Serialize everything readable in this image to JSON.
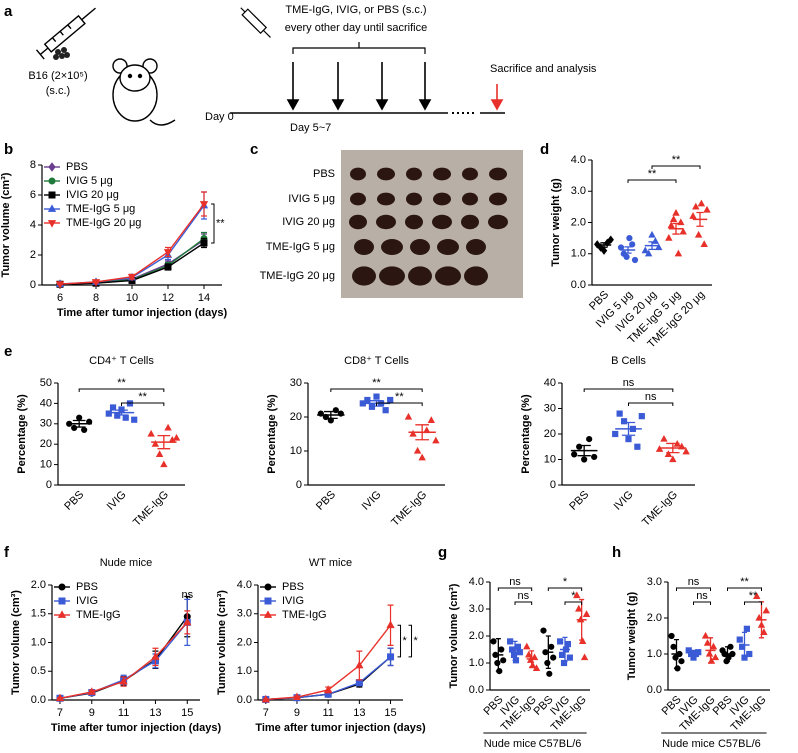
{
  "schematic": {
    "panel": "a",
    "tumor": "B16 (2×10⁵)",
    "route": "(s.c.)",
    "treatment": "TME-IgG, IVIG, or PBS (s.c.)",
    "schedule": "every other day until sacrifice",
    "end": "Sacrifice and analysis",
    "day0": "Day 0",
    "day_start": "Day 5~7"
  },
  "photo": {
    "panel": "c",
    "rows": [
      "PBS",
      "IVIG 5 μg",
      "IVIG 20 μg",
      "TME-IgG 5 μg",
      "TME-IgG 20 μg"
    ]
  },
  "chart_data": [
    {
      "type": "line",
      "panel": "b",
      "ylabel": "Tumor volume (cm³)",
      "xlabel": "Time after tumor injection (days)",
      "x": [
        6,
        8,
        10,
        12,
        14
      ],
      "xlim": [
        5,
        15
      ],
      "xticks": [
        6,
        8,
        10,
        12,
        14
      ],
      "ylim": [
        0,
        8
      ],
      "yticks": [
        0,
        2,
        4,
        6,
        8
      ],
      "legend": "upper left",
      "series": [
        {
          "name": "PBS",
          "color": "#6a3d8f",
          "marker": "diamond",
          "values": [
            0.05,
            0.15,
            0.4,
            1.4,
            3.0
          ],
          "errors": [
            0.02,
            0.05,
            0.1,
            0.2,
            0.4
          ]
        },
        {
          "name": "IVIG 5 μg",
          "color": "#1f7a3c",
          "marker": "circle",
          "values": [
            0.05,
            0.15,
            0.35,
            1.3,
            3.1
          ],
          "errors": [
            0.02,
            0.05,
            0.1,
            0.2,
            0.4
          ]
        },
        {
          "name": "IVIG 20 μg",
          "color": "#000000",
          "marker": "square",
          "values": [
            0.05,
            0.12,
            0.3,
            1.2,
            2.8
          ],
          "errors": [
            0.02,
            0.05,
            0.1,
            0.2,
            0.3
          ]
        },
        {
          "name": "TME-IgG 5 μg",
          "color": "#3b5bd6",
          "marker": "triangle",
          "values": [
            0.06,
            0.2,
            0.5,
            2.0,
            5.3
          ],
          "errors": [
            0.02,
            0.05,
            0.15,
            0.3,
            0.9
          ]
        },
        {
          "name": "TME-IgG 20 μg",
          "color": "#e8312a",
          "marker": "triangle-down",
          "values": [
            0.06,
            0.2,
            0.55,
            2.2,
            5.4
          ],
          "errors": [
            0.02,
            0.05,
            0.15,
            0.3,
            0.8
          ]
        }
      ],
      "significance": [
        {
          "label": "**",
          "series": [
            2,
            4
          ]
        }
      ]
    },
    {
      "type": "dot",
      "panel": "d",
      "ylabel": "Tumor weight (g)",
      "categories": [
        "PBS",
        "IVIG 5 μg",
        "IVIG 20 μg",
        "TME-IgG 5 μg",
        "TME-IgG 20 μg"
      ],
      "ylim": [
        0,
        4
      ],
      "yticks": [
        {
          "value": 0,
          "label": "0.0"
        },
        {
          "value": 1,
          "label": "1.0"
        },
        {
          "value": 2,
          "label": "2.0"
        },
        {
          "value": 3,
          "label": "3.0"
        },
        {
          "value": 4,
          "label": "4.0"
        }
      ],
      "groups": [
        {
          "color": "#000000",
          "marker": "diamond",
          "points": [
            1.3,
            1.2,
            1.1,
            1.35,
            1.45
          ],
          "mean": 1.28,
          "error": 0.07
        },
        {
          "color": "#3b5bd6",
          "marker": "circle",
          "points": [
            1.2,
            1.0,
            0.9,
            1.5,
            1.3,
            0.8
          ],
          "mean": 1.12,
          "error": 0.1
        },
        {
          "color": "#3b5bd6",
          "marker": "triangle",
          "points": [
            1.1,
            1.0,
            1.6,
            1.4,
            1.2
          ],
          "mean": 1.26,
          "error": 0.12
        },
        {
          "color": "#e8312a",
          "marker": "triangle",
          "points": [
            1.5,
            1.9,
            2.1,
            2.3,
            1.0,
            2.0,
            1.7
          ],
          "mean": 1.8,
          "error": 0.17
        },
        {
          "color": "#e8312a",
          "marker": "triangle",
          "points": [
            2.2,
            2.5,
            1.6,
            2.6,
            1.3,
            2.4
          ],
          "mean": 2.1,
          "error": 0.22
        }
      ],
      "significance": [
        {
          "label": "**",
          "pair": [
            1,
            3
          ]
        },
        {
          "label": "**",
          "pair": [
            2,
            4
          ]
        }
      ]
    },
    {
      "type": "dot",
      "panel": "e",
      "title": "CD4⁺ T Cells",
      "ylabel": "Percentage (%)",
      "categories": [
        "PBS",
        "IVIG",
        "TME-IgG"
      ],
      "ylim": [
        0,
        50
      ],
      "yticks": [
        0,
        10,
        20,
        30,
        40,
        50
      ],
      "groups": [
        {
          "color": "#000000",
          "marker": "circle",
          "points": [
            30,
            28,
            33,
            27,
            31
          ],
          "mean": 30,
          "error": 1.6
        },
        {
          "color": "#3b5bd6",
          "marker": "square",
          "points": [
            35,
            38,
            34,
            37,
            33,
            40,
            32
          ],
          "mean": 35.5,
          "error": 1.2
        },
        {
          "color": "#e8312a",
          "marker": "triangle",
          "points": [
            25,
            20,
            15,
            10,
            28,
            22,
            23
          ],
          "mean": 21,
          "error": 3.2
        }
      ],
      "significance": [
        {
          "label": "**",
          "pair": [
            1,
            2
          ]
        },
        {
          "label": "**",
          "pair": [
            0,
            2
          ]
        }
      ]
    },
    {
      "type": "dot",
      "title": "CD8⁺ T Cells",
      "ylabel": "Percentage (%)",
      "categories": [
        "PBS",
        "IVIG",
        "TME-IgG"
      ],
      "ylim": [
        0,
        30
      ],
      "yticks": [
        0,
        10,
        20,
        30
      ],
      "groups": [
        {
          "color": "#000000",
          "marker": "circle",
          "points": [
            21,
            20,
            19,
            22,
            21
          ],
          "mean": 20.6,
          "error": 1.0
        },
        {
          "color": "#3b5bd6",
          "marker": "square",
          "points": [
            24,
            25,
            23,
            26,
            24,
            22,
            25
          ],
          "mean": 24,
          "error": 0.8
        },
        {
          "color": "#e8312a",
          "marker": "triangle",
          "points": [
            20,
            15,
            10,
            8,
            16,
            19,
            13
          ],
          "mean": 15.5,
          "error": 2.2
        }
      ],
      "significance": [
        {
          "label": "**",
          "pair": [
            1,
            2
          ]
        },
        {
          "label": "**",
          "pair": [
            0,
            2
          ]
        }
      ]
    },
    {
      "type": "dot",
      "title": "B Cells",
      "ylabel": "Percentage (%)",
      "categories": [
        "PBS",
        "IVIG",
        "TME-IgG"
      ],
      "ylim": [
        0,
        40
      ],
      "yticks": [
        0,
        10,
        20,
        30,
        40
      ],
      "groups": [
        {
          "color": "#000000",
          "marker": "circle",
          "points": [
            12,
            15,
            10,
            18,
            11
          ],
          "mean": 13.5,
          "error": 2.0
        },
        {
          "color": "#3b5bd6",
          "marker": "square",
          "points": [
            20,
            28,
            25,
            18,
            22,
            15,
            27
          ],
          "mean": 22,
          "error": 2.5
        },
        {
          "color": "#e8312a",
          "marker": "triangle",
          "points": [
            14,
            18,
            12,
            10,
            16,
            15,
            13
          ],
          "mean": 14.5,
          "error": 1.8
        }
      ],
      "significance": [
        {
          "label": "ns",
          "pair": [
            1,
            2
          ]
        },
        {
          "label": "ns",
          "pair": [
            0,
            2
          ]
        }
      ]
    },
    {
      "type": "line",
      "panel": "f",
      "title": "Nude mice",
      "ylabel": "Tumor volume (cm³)",
      "xlabel": "Time after tumor injection (days)",
      "x": [
        7,
        9,
        11,
        13,
        15
      ],
      "xlim": [
        6.5,
        15.8
      ],
      "xticks": [
        7,
        9,
        11,
        13,
        15
      ],
      "ylim": [
        0,
        2
      ],
      "yticks": [
        {
          "value": 0,
          "label": "0.0"
        },
        {
          "value": 0.5,
          "label": "0.5"
        },
        {
          "value": 1,
          "label": "1.0"
        },
        {
          "value": 1.5,
          "label": "1.5"
        },
        {
          "value": 2,
          "label": "2.0"
        }
      ],
      "legend": "upper left",
      "series": [
        {
          "name": "PBS",
          "color": "#000000",
          "marker": "circle",
          "values": [
            0.03,
            0.12,
            0.33,
            0.7,
            1.45
          ],
          "errors": [
            0.01,
            0.03,
            0.08,
            0.15,
            0.35
          ]
        },
        {
          "name": "IVIG",
          "color": "#3b5bd6",
          "marker": "square",
          "values": [
            0.03,
            0.13,
            0.35,
            0.68,
            1.35
          ],
          "errors": [
            0.01,
            0.03,
            0.08,
            0.12,
            0.4
          ]
        },
        {
          "name": "TME-IgG",
          "color": "#e8312a",
          "marker": "triangle",
          "values": [
            0.03,
            0.14,
            0.32,
            0.75,
            1.35
          ],
          "errors": [
            0.01,
            0.03,
            0.08,
            0.15,
            0.2
          ]
        }
      ],
      "note": "ns"
    },
    {
      "type": "line",
      "title": "WT mice",
      "ylabel": "Tumor volume (cm³)",
      "xlabel": "Time after tumor injection (days)",
      "x": [
        7,
        9,
        11,
        13,
        15
      ],
      "xlim": [
        6.5,
        15.8
      ],
      "xticks": [
        7,
        9,
        11,
        13,
        15
      ],
      "ylim": [
        0,
        4
      ],
      "yticks": [
        {
          "value": 0,
          "label": "0.0"
        },
        {
          "value": 1,
          "label": "1.0"
        },
        {
          "value": 2,
          "label": "2.0"
        },
        {
          "value": 3,
          "label": "3.0"
        },
        {
          "value": 4,
          "label": "4.0"
        }
      ],
      "legend": "upper left",
      "series": [
        {
          "name": "PBS",
          "color": "#000000",
          "marker": "circle",
          "values": [
            0.02,
            0.08,
            0.2,
            0.55,
            1.5
          ],
          "errors": [
            0.01,
            0.03,
            0.05,
            0.1,
            0.3
          ]
        },
        {
          "name": "IVIG",
          "color": "#3b5bd6",
          "marker": "square",
          "values": [
            0.02,
            0.08,
            0.2,
            0.6,
            1.5
          ],
          "errors": [
            0.01,
            0.03,
            0.05,
            0.1,
            0.3
          ]
        },
        {
          "name": "TME-IgG",
          "color": "#e8312a",
          "marker": "triangle",
          "values": [
            0.02,
            0.1,
            0.35,
            1.2,
            2.6
          ],
          "errors": [
            0.01,
            0.03,
            0.1,
            0.5,
            0.7
          ]
        }
      ],
      "significance": [
        {
          "label": "*",
          "series": [
            1,
            2
          ]
        },
        {
          "label": "*",
          "series": [
            0,
            2
          ]
        }
      ]
    },
    {
      "type": "dot",
      "panel": "g",
      "ylabel": "Tumor volume (cm³)",
      "categories": [
        "PBS",
        "IVIG",
        "TME-IgG",
        "PBS",
        "IVIG",
        "TME-IgG"
      ],
      "ylim": [
        0,
        4
      ],
      "yticks": [
        {
          "value": 0,
          "label": "0.0"
        },
        {
          "value": 1,
          "label": "1.0"
        },
        {
          "value": 2,
          "label": "2.0"
        },
        {
          "value": 3,
          "label": "3.0"
        },
        {
          "value": 4,
          "label": "4.0"
        }
      ],
      "groups": [
        {
          "color": "#000000",
          "marker": "circle",
          "points": [
            1.8,
            1.3,
            1.0,
            0.7,
            1.5,
            1.1
          ],
          "mean": 1.3,
          "error": 0.6
        },
        {
          "color": "#3b5bd6",
          "marker": "square",
          "points": [
            1.8,
            1.5,
            1.3,
            1.1,
            1.6,
            1.4
          ],
          "mean": 1.45,
          "error": 0.35
        },
        {
          "color": "#e8312a",
          "marker": "triangle",
          "points": [
            1.6,
            1.3,
            1.1,
            0.9,
            1.2,
            0.8
          ],
          "mean": 1.15,
          "error": 0.3
        },
        {
          "color": "#000000",
          "marker": "circle",
          "points": [
            2.2,
            1.4,
            1.0,
            0.6,
            1.6,
            1.2
          ],
          "mean": 1.4,
          "error": 0.6
        },
        {
          "color": "#3b5bd6",
          "marker": "square",
          "points": [
            1.8,
            1.3,
            1.0,
            1.5,
            1.7,
            1.2
          ],
          "mean": 1.5,
          "error": 0.45
        },
        {
          "color": "#e8312a",
          "marker": "triangle",
          "points": [
            3.5,
            3.0,
            2.6,
            1.8,
            1.2,
            2.8
          ],
          "mean": 2.6,
          "error": 0.75
        }
      ],
      "significance": [
        {
          "label": "ns",
          "pair": [
            1,
            2
          ]
        },
        {
          "label": "ns",
          "pair": [
            0,
            2
          ]
        },
        {
          "label": "*",
          "pair": [
            4,
            5
          ]
        },
        {
          "label": "*",
          "pair": [
            3,
            5
          ]
        }
      ],
      "group_labels": [
        {
          "label": "Nude mice",
          "span": [
            0,
            2
          ]
        },
        {
          "label": "C57BL/6",
          "span": [
            3,
            5
          ]
        }
      ]
    },
    {
      "type": "dot",
      "panel": "h",
      "ylabel": "Tumor weight (g)",
      "categories": [
        "PBS",
        "IVIG",
        "TME-IgG",
        "PBS",
        "IVIG",
        "TME-IgG"
      ],
      "ylim": [
        0,
        3
      ],
      "yticks": [
        {
          "value": 0,
          "label": "0.0"
        },
        {
          "value": 1,
          "label": "1.0"
        },
        {
          "value": 2,
          "label": "2.0"
        },
        {
          "value": 3,
          "label": "3.0"
        }
      ],
      "groups": [
        {
          "color": "#000000",
          "marker": "circle",
          "points": [
            1.5,
            1.2,
            0.9,
            0.6,
            1.0,
            0.8
          ],
          "mean": 1.0,
          "error": 0.4
        },
        {
          "color": "#3b5bd6",
          "marker": "square",
          "points": [
            1.1,
            1.0,
            0.9,
            1.0,
            1.05
          ],
          "mean": 1.0,
          "error": 0.1
        },
        {
          "color": "#e8312a",
          "marker": "triangle",
          "points": [
            1.5,
            1.3,
            1.0,
            0.8,
            1.2,
            0.9
          ],
          "mean": 1.1,
          "error": 0.35
        },
        {
          "color": "#000000",
          "marker": "circle",
          "points": [
            1.1,
            1.0,
            0.8,
            0.9,
            1.2,
            1.0
          ],
          "mean": 1.0,
          "error": 0.2
        },
        {
          "color": "#3b5bd6",
          "marker": "square",
          "points": [
            1.4,
            1.2,
            0.9,
            1.7,
            1.0
          ],
          "mean": 1.25,
          "error": 0.35
        },
        {
          "color": "#e8312a",
          "marker": "triangle",
          "points": [
            2.6,
            2.0,
            1.8,
            1.6,
            2.2
          ],
          "mean": 1.95,
          "error": 0.5
        }
      ],
      "significance": [
        {
          "label": "ns",
          "pair": [
            1,
            2
          ]
        },
        {
          "label": "ns",
          "pair": [
            0,
            2
          ]
        },
        {
          "label": "**",
          "pair": [
            4,
            5
          ]
        },
        {
          "label": "**",
          "pair": [
            3,
            5
          ]
        }
      ],
      "group_labels": [
        {
          "label": "Nude mice",
          "span": [
            0,
            2
          ]
        },
        {
          "label": "C57BL/6",
          "span": [
            3,
            5
          ]
        }
      ]
    }
  ]
}
